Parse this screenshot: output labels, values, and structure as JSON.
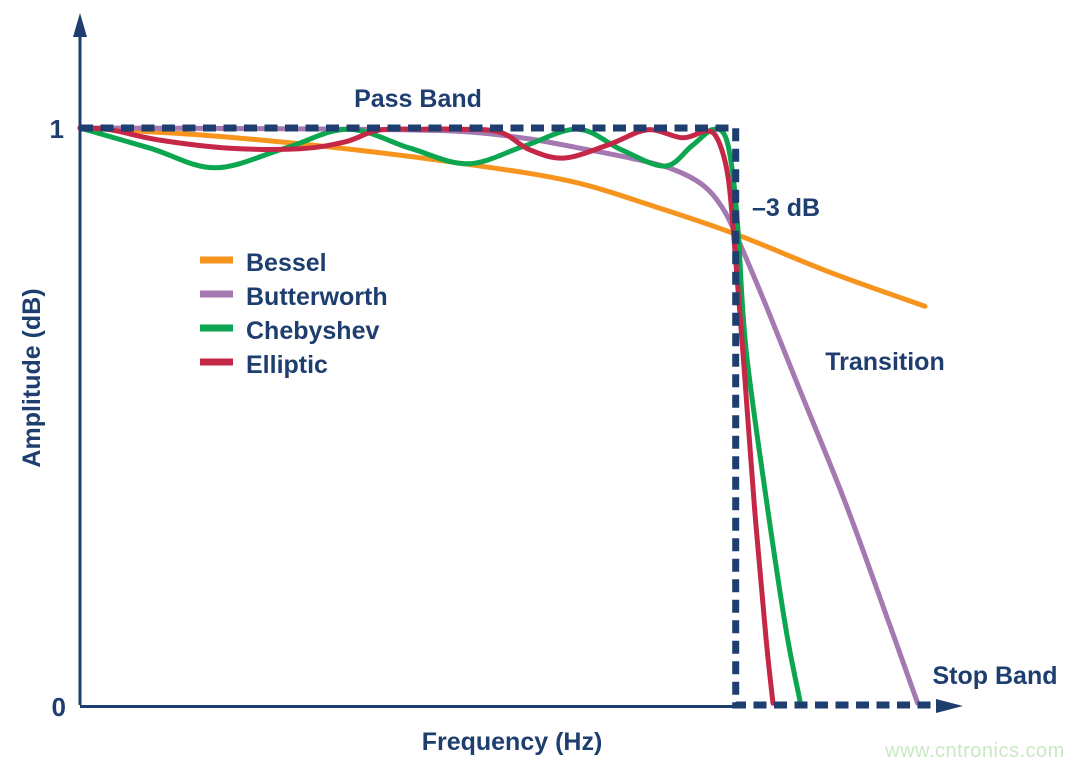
{
  "colors": {
    "navy": "#1D3E6E",
    "watermark_green": "#C9E9C3",
    "background": "#FFFFFF"
  },
  "labels": {
    "pass_band": "Pass Band",
    "minus_3db": "–3 dB",
    "transition": "Transition",
    "stop_band": "Stop Band",
    "xlabel": "Frequency (Hz)",
    "ylabel": "Amplitude (dB)",
    "tick_one": "1",
    "tick_zero": "0",
    "watermark": "www.cntronics.com"
  },
  "chart_data": {
    "type": "line",
    "title": "",
    "xlabel": "Frequency (Hz)",
    "ylabel": "Amplitude (dB)",
    "x_axis": {
      "unit": "frequency normalized to the –3 dB cutoff (fc = 1.0)",
      "range": [
        0,
        1.35
      ],
      "ticks": []
    },
    "y_axis": {
      "unit": "normalized amplitude",
      "range": [
        0,
        1
      ],
      "ticks": [
        0,
        1
      ]
    },
    "grid": false,
    "legend_position": "inside upper-left",
    "cutoff_gain_db": -3,
    "annotations": [
      {
        "text": "Pass Band",
        "x": 0.52,
        "y": 1.07
      },
      {
        "text": "–3 dB",
        "x": 1.03,
        "y": 0.86
      },
      {
        "text": "Transition",
        "x": 1.23,
        "y": 0.59
      },
      {
        "text": "Stop Band",
        "x": 1.4,
        "y": 0.05
      }
    ],
    "ideal_response": {
      "label": "ideal brick-wall filter response",
      "style": "dashed",
      "color": "#1D3E6E",
      "points": [
        [
          0,
          1
        ],
        [
          1.001,
          1
        ],
        [
          1.001,
          0
        ],
        [
          1.313,
          0
        ]
      ],
      "arrow_tip_x": 1.348
    },
    "series": [
      {
        "name": "Bessel",
        "color": "#F7941E",
        "points": [
          [
            0,
            1.0
          ],
          [
            0.183,
            0.988
          ],
          [
            0.382,
            0.967
          ],
          [
            0.58,
            0.939
          ],
          [
            0.748,
            0.908
          ],
          [
            0.885,
            0.861
          ],
          [
            1.001,
            0.816
          ],
          [
            1.145,
            0.75
          ],
          [
            1.29,
            0.691
          ]
        ]
      },
      {
        "name": "Butterworth",
        "color": "#A478B0",
        "points": [
          [
            0,
            1.0
          ],
          [
            0.26,
            0.999
          ],
          [
            0.488,
            0.997
          ],
          [
            0.595,
            0.993
          ],
          [
            0.687,
            0.981
          ],
          [
            0.763,
            0.965
          ],
          [
            0.84,
            0.948
          ],
          [
            0.904,
            0.929
          ],
          [
            0.951,
            0.901
          ],
          [
            0.98,
            0.863
          ],
          [
            1.003,
            0.811
          ],
          [
            1.047,
            0.693
          ],
          [
            1.099,
            0.546
          ],
          [
            1.168,
            0.352
          ],
          [
            1.227,
            0.168
          ],
          [
            1.279,
            0.003
          ]
        ]
      },
      {
        "name": "Chebyshev",
        "color": "#0BA64F",
        "points": [
          [
            0,
            1.0
          ],
          [
            0.107,
            0.965
          ],
          [
            0.206,
            0.931
          ],
          [
            0.313,
            0.965
          ],
          [
            0.409,
            0.998
          ],
          [
            0.504,
            0.965
          ],
          [
            0.592,
            0.938
          ],
          [
            0.679,
            0.969
          ],
          [
            0.76,
            0.998
          ],
          [
            0.827,
            0.962
          ],
          [
            0.893,
            0.934
          ],
          [
            0.934,
            0.969
          ],
          [
            0.965,
            0.997
          ],
          [
            0.985,
            0.986
          ],
          [
            0.997,
            0.917
          ],
          [
            1.005,
            0.815
          ],
          [
            1.017,
            0.615
          ],
          [
            1.048,
            0.355
          ],
          [
            1.078,
            0.13
          ],
          [
            1.1,
            0.003
          ]
        ]
      },
      {
        "name": "Elliptic",
        "color": "#C52747",
        "points": [
          [
            0,
            1.0
          ],
          [
            0.046,
            0.997
          ],
          [
            0.122,
            0.979
          ],
          [
            0.229,
            0.965
          ],
          [
            0.336,
            0.964
          ],
          [
            0.405,
            0.976
          ],
          [
            0.455,
            0.996
          ],
          [
            0.52,
            0.998
          ],
          [
            0.58,
            0.998
          ],
          [
            0.641,
            0.993
          ],
          [
            0.687,
            0.962
          ],
          [
            0.74,
            0.948
          ],
          [
            0.809,
            0.972
          ],
          [
            0.867,
            0.997
          ],
          [
            0.92,
            0.983
          ],
          [
            0.957,
            0.995
          ],
          [
            0.974,
            0.979
          ],
          [
            0.989,
            0.918
          ],
          [
            0.998,
            0.815
          ],
          [
            1.013,
            0.598
          ],
          [
            1.03,
            0.34
          ],
          [
            1.047,
            0.12
          ],
          [
            1.058,
            0.003
          ]
        ]
      }
    ]
  }
}
